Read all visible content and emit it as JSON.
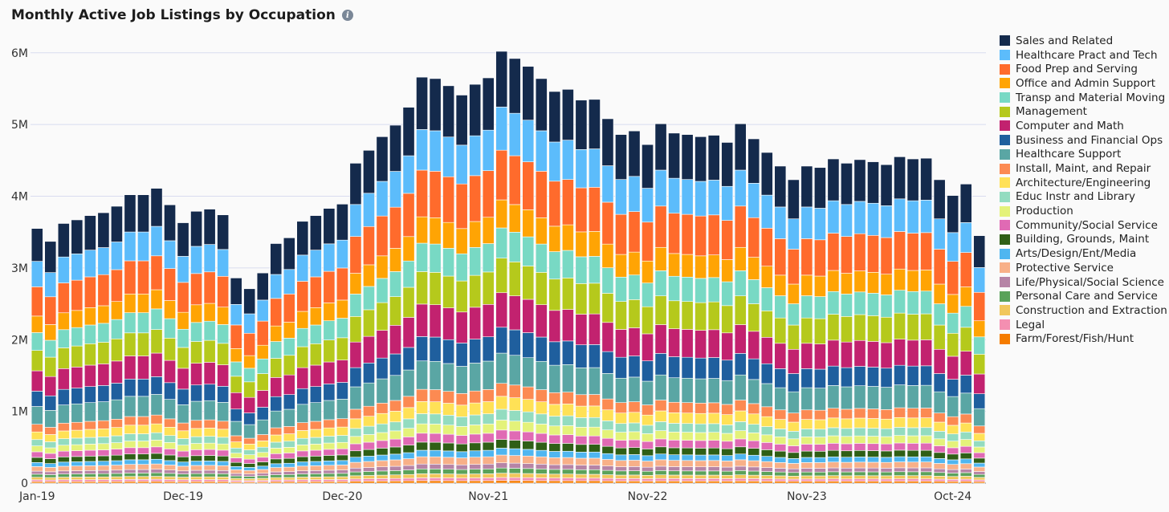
{
  "chart_data": {
    "type": "bar",
    "stacked": true,
    "title": "Monthly Active Job Listings by Occupation",
    "info_icon": "info-icon",
    "xlabel": "",
    "ylabel": "",
    "ylim": [
      0,
      6400000
    ],
    "y_ticks": [
      0,
      1000000,
      2000000,
      3000000,
      4000000,
      5000000,
      6000000
    ],
    "y_tick_labels": [
      "0",
      "1M",
      "2M",
      "3M",
      "4M",
      "5M",
      "6M"
    ],
    "x_tick_labels": [
      {
        "label": "Jan-19",
        "index": 0
      },
      {
        "label": "Dec-19",
        "index": 11
      },
      {
        "label": "Dec-20",
        "index": 23
      },
      {
        "label": "Nov-21",
        "index": 34
      },
      {
        "label": "Nov-22",
        "index": 46
      },
      {
        "label": "Nov-23",
        "index": 58
      },
      {
        "label": "Oct-24",
        "index": 69
      }
    ],
    "grid": true,
    "legend_position": "right",
    "categories": [
      "Jan-19",
      "Feb-19",
      "Mar-19",
      "Apr-19",
      "May-19",
      "Jun-19",
      "Jul-19",
      "Aug-19",
      "Sep-19",
      "Oct-19",
      "Nov-19",
      "Dec-19",
      "Jan-20",
      "Feb-20",
      "Mar-20",
      "Apr-20",
      "May-20",
      "Jun-20",
      "Jul-20",
      "Aug-20",
      "Sep-20",
      "Oct-20",
      "Nov-20",
      "Dec-20",
      "Jan-21",
      "Feb-21",
      "Mar-21",
      "Apr-21",
      "May-21",
      "Jun-21",
      "Jul-21",
      "Aug-21",
      "Sep-21",
      "Oct-21",
      "Nov-21",
      "Dec-21",
      "Jan-22",
      "Feb-22",
      "Mar-22",
      "Apr-22",
      "May-22",
      "Jun-22",
      "Jul-22",
      "Aug-22",
      "Sep-22",
      "Oct-22",
      "Nov-22",
      "Dec-22",
      "Jan-23",
      "Feb-23",
      "Mar-23",
      "Apr-23",
      "May-23",
      "Jun-23",
      "Jul-23",
      "Aug-23",
      "Sep-23",
      "Oct-23",
      "Nov-23",
      "Dec-23",
      "Jan-24",
      "Feb-24",
      "Mar-24",
      "Apr-24",
      "May-24",
      "Jun-24",
      "Jul-24",
      "Aug-24",
      "Sep-24",
      "Oct-24",
      "Nov-24",
      "Dec-24"
    ],
    "totals": [
      3550000,
      3370000,
      3620000,
      3670000,
      3730000,
      3770000,
      3860000,
      4020000,
      4020000,
      4110000,
      3880000,
      3630000,
      3790000,
      3820000,
      3740000,
      2860000,
      2710000,
      2930000,
      3340000,
      3420000,
      3650000,
      3730000,
      3830000,
      3890000,
      4460000,
      4640000,
      4830000,
      4990000,
      5240000,
      5660000,
      5640000,
      5540000,
      5410000,
      5560000,
      5650000,
      6020000,
      5920000,
      5810000,
      5640000,
      5460000,
      5490000,
      5340000,
      5350000,
      5080000,
      4860000,
      4910000,
      4720000,
      5010000,
      4880000,
      4860000,
      4830000,
      4850000,
      4750000,
      5010000,
      4800000,
      4610000,
      4420000,
      4230000,
      4420000,
      4400000,
      4520000,
      4460000,
      4510000,
      4480000,
      4440000,
      4550000,
      4520000,
      4530000,
      4230000,
      4010000,
      4170000,
      3450000
    ],
    "series": [
      {
        "name": "Farm/Forest/Fish/Hunt",
        "color": "#f57c00",
        "share": 0.006
      },
      {
        "name": "Legal",
        "color": "#f48fb1",
        "share": 0.007
      },
      {
        "name": "Construction and Extraction",
        "color": "#f1c75b",
        "share": 0.01
      },
      {
        "name": "Personal Care and Service",
        "color": "#5aa25a",
        "share": 0.012
      },
      {
        "name": "Life/Physical/Social Science",
        "color": "#b684a6",
        "share": 0.012
      },
      {
        "name": "Protective Service",
        "color": "#f8b088",
        "share": 0.018
      },
      {
        "name": "Arts/Design/Ent/Media",
        "color": "#4fb6f0",
        "share": 0.016
      },
      {
        "name": "Building, Grounds, Maint",
        "color": "#2f5f16",
        "share": 0.02
      },
      {
        "name": "Community/Social Service",
        "color": "#e06ab4",
        "share": 0.022
      },
      {
        "name": "Production",
        "color": "#e4f27a",
        "share": 0.023
      },
      {
        "name": "Educ Instr and Library",
        "color": "#93dcc0",
        "share": 0.025
      },
      {
        "name": "Architecture/Engineering",
        "color": "#ffe156",
        "share": 0.03
      },
      {
        "name": "Install, Maint, and Repair",
        "color": "#fc8a52",
        "share": 0.03
      },
      {
        "name": "Healthcare Support",
        "color": "#5aa6a4",
        "share": 0.07
      },
      {
        "name": "Business and Financial Ops",
        "color": "#1f5f9e",
        "share": 0.06
      },
      {
        "name": "Computer and Math",
        "color": "#c2226f",
        "share": 0.08
      },
      {
        "name": "Management",
        "color": "#b5c91c",
        "share": 0.08
      },
      {
        "name": "Transp and Material Moving",
        "color": "#78d9c4",
        "share": 0.07
      },
      {
        "name": "Office and Admin Support",
        "color": "#ffa404",
        "share": 0.065
      },
      {
        "name": "Food Prep and Serving",
        "color": "#ff6b2c",
        "share": 0.115
      },
      {
        "name": "Healthcare Pract and Tech",
        "color": "#5cbcfb",
        "share": 0.1
      },
      {
        "name": "Sales and Related",
        "color": "#142a4c",
        "share": 0.129
      }
    ]
  }
}
